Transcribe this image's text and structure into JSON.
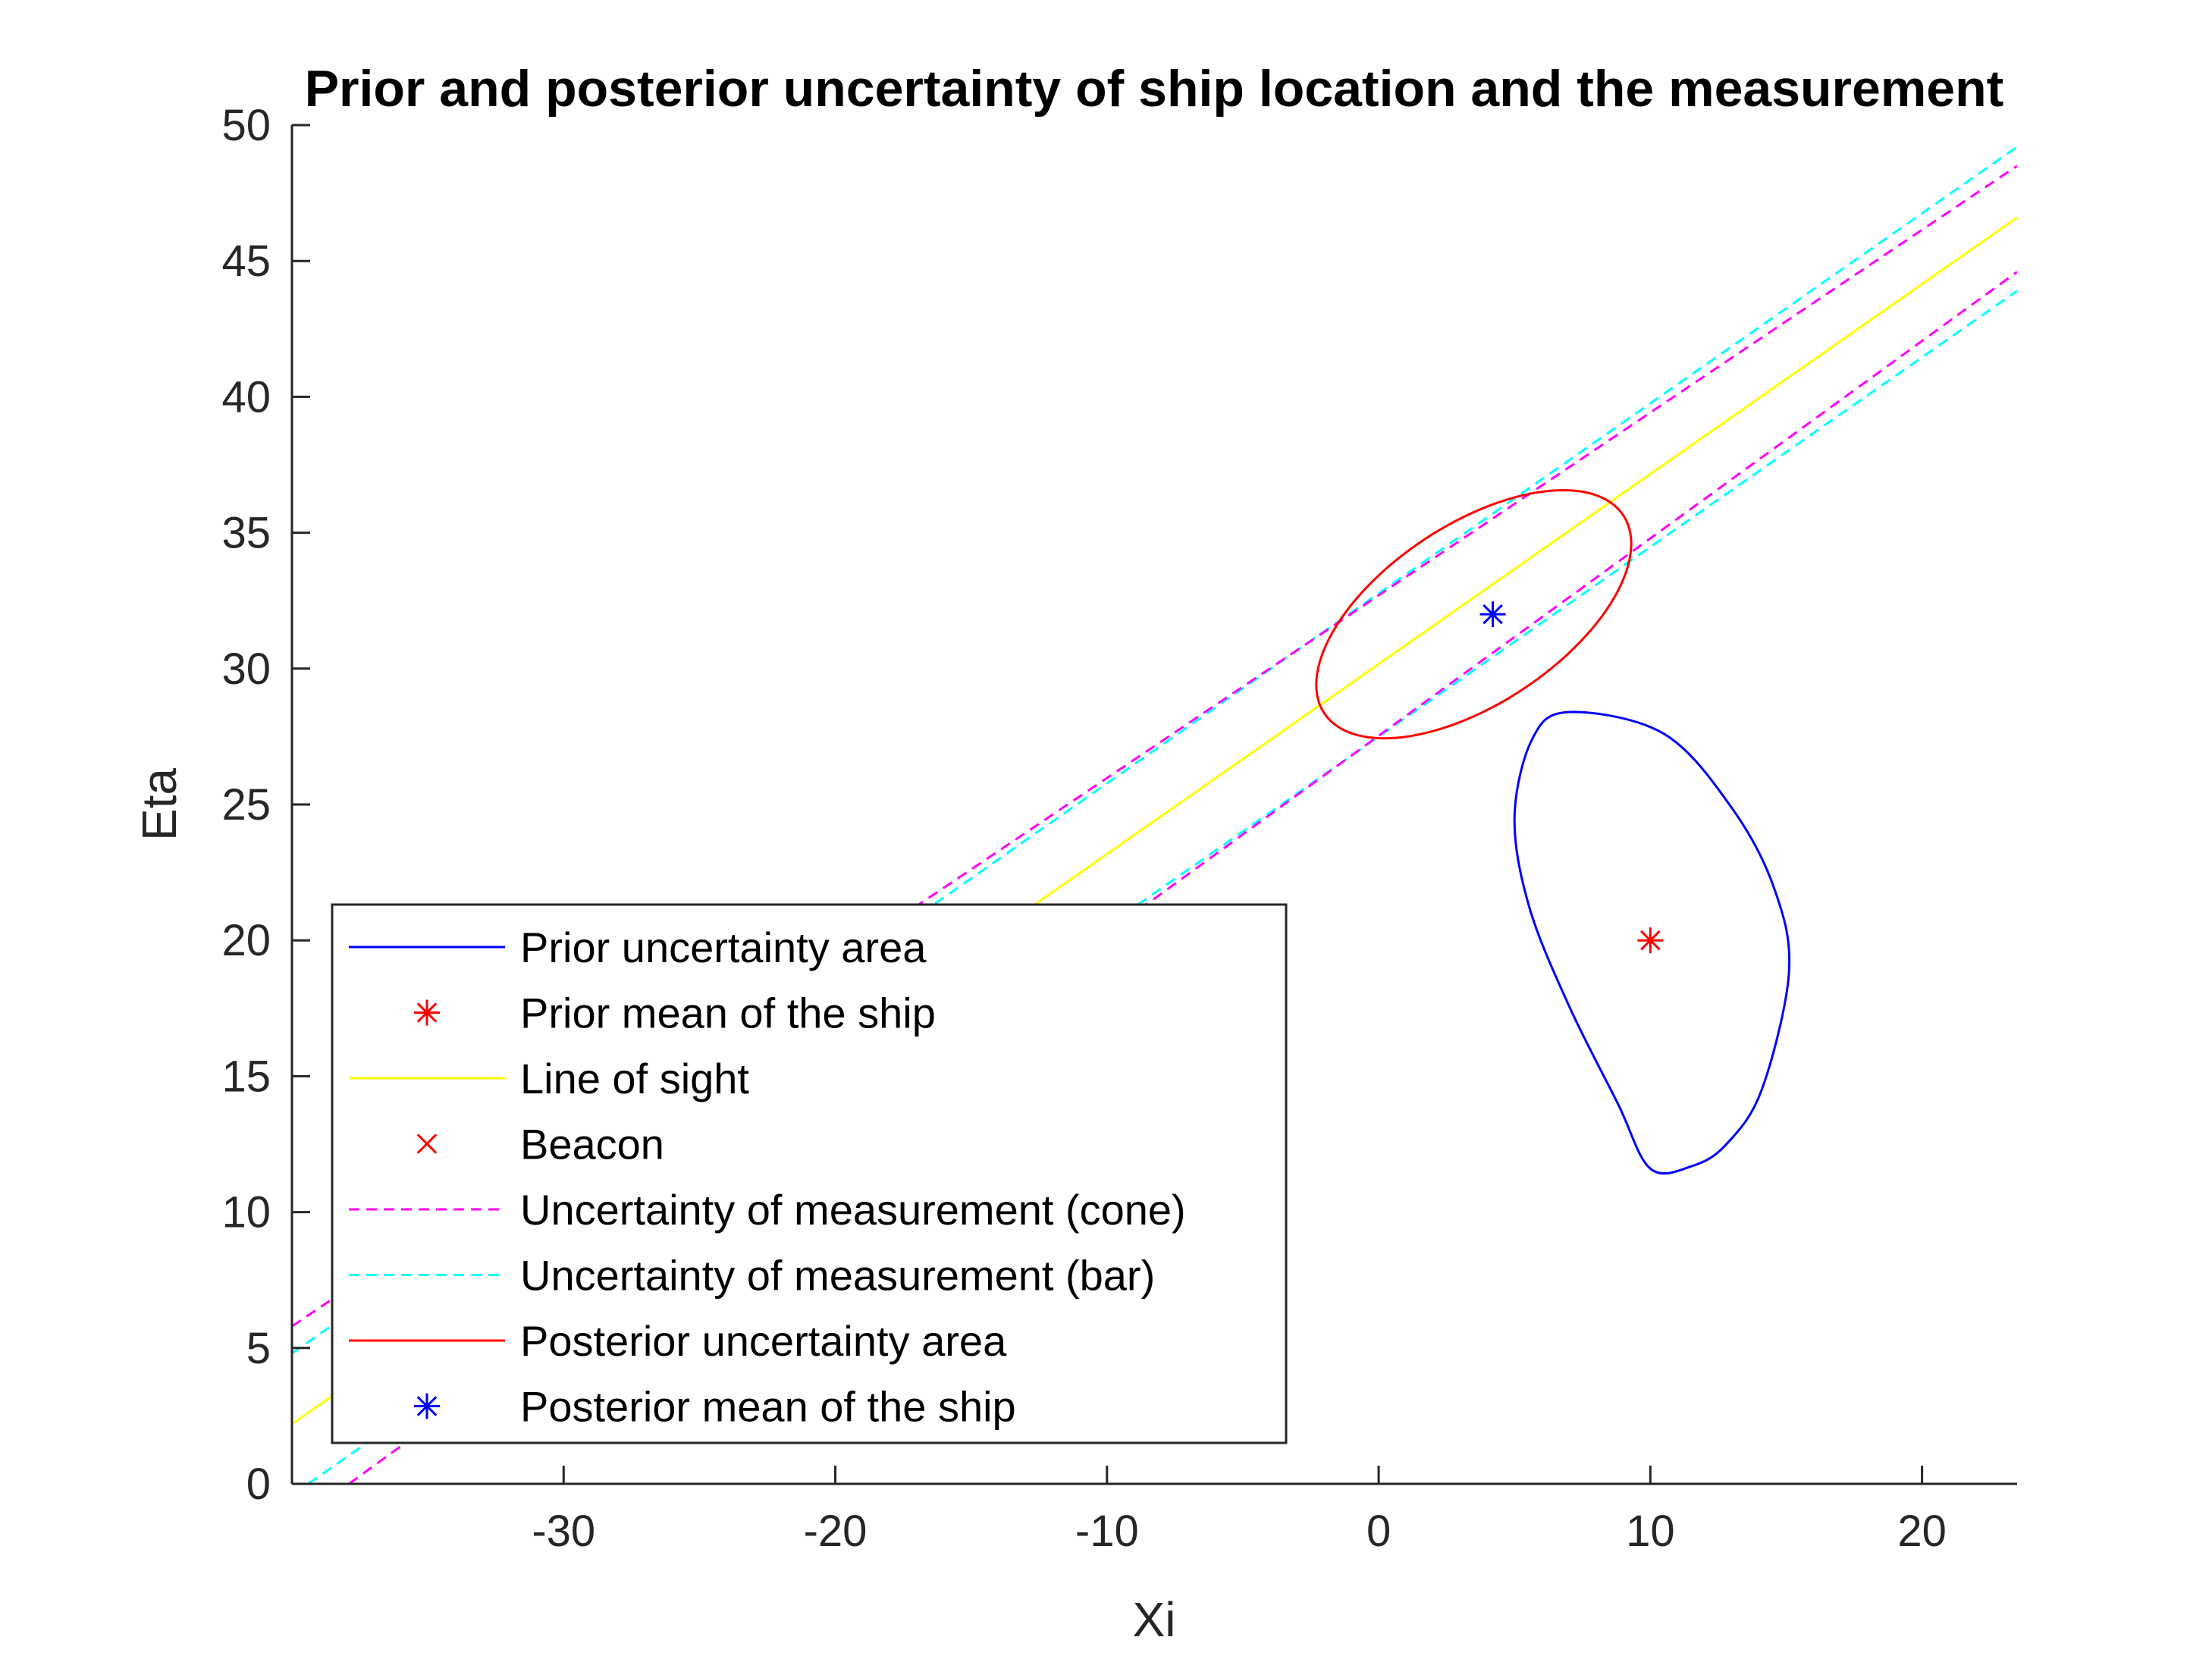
{
  "chart_data": {
    "type": "line",
    "title": "Prior and posterior uncertainty of ship location and the measurement",
    "xlabel": "Xi",
    "ylabel": "Eta",
    "xlim": [
      -40,
      23.5
    ],
    "ylim": [
      0,
      50
    ],
    "xticks": [
      -30,
      -20,
      -10,
      0,
      10,
      20
    ],
    "yticks": [
      0,
      5,
      10,
      15,
      20,
      25,
      30,
      35,
      40,
      45,
      50
    ],
    "legend_position": "bottom-left",
    "grid": false,
    "colors": {
      "prior_ellipse": "#0000ff",
      "prior_mean": "#ff0000",
      "line_of_sight": "#ffff00",
      "beacon": "#ff0000",
      "cone": "#ff00ff",
      "bar": "#00ffff",
      "posterior_ellipse": "#ff0000",
      "posterior_mean": "#0000ff"
    },
    "series": [
      {
        "name": "Prior uncertainty area",
        "kind": "ellipse",
        "color": "#0000ff",
        "style": "solid",
        "x": [
          10.0,
          11.55,
          12.8,
          14.1,
          15.1,
          14.6,
          13.05,
          10.5,
          7.0,
          5.65,
          5.0,
          5.55,
          7.0,
          8.8,
          10.0
        ],
        "y": [
          11.6,
          11.7,
          12.5,
          14.5,
          18.8,
          21.8,
          24.8,
          27.6,
          28.4,
          27.4,
          24.5,
          21.2,
          17.6,
          14.0,
          11.6
        ]
      },
      {
        "name": "Prior mean of the ship",
        "kind": "marker",
        "marker": "asterisk",
        "color": "#ff0000",
        "x": [
          10.0
        ],
        "y": [
          20.0
        ]
      },
      {
        "name": "Line of sight",
        "kind": "line",
        "color": "#ffff00",
        "style": "solid",
        "x": [
          -40.0,
          23.5
        ],
        "y": [
          2.2,
          46.6
        ]
      },
      {
        "name": "Beacon",
        "kind": "marker",
        "marker": "cross",
        "color": "#ff0000",
        "x": [],
        "y": []
      },
      {
        "name": "Uncertainty of measurement (cone)",
        "kind": "line-pair",
        "color": "#ff00ff",
        "style": "dashed",
        "lines": [
          {
            "x": [
              -40.0,
              23.5
            ],
            "y": [
              5.8,
              48.5
            ]
          },
          {
            "x": [
              -37.9,
              23.5
            ],
            "y": [
              0.0,
              44.6
            ]
          }
        ]
      },
      {
        "name": "Uncertainty of measurement (bar)",
        "kind": "line-pair",
        "color": "#00ffff",
        "style": "dashed",
        "lines": [
          {
            "x": [
              -40.0,
              23.5
            ],
            "y": [
              4.8,
              49.2
            ]
          },
          {
            "x": [
              -39.4,
              23.5
            ],
            "y": [
              0.0,
              43.9
            ]
          }
        ]
      },
      {
        "name": "Posterior uncertainty area",
        "kind": "ellipse",
        "color": "#ff0000",
        "style": "solid",
        "cx": 3.5,
        "cy": 32.0,
        "rx": 6.6,
        "ry": 3.3,
        "angle_deg": 33.5
      },
      {
        "name": "Posterior mean of the ship",
        "kind": "marker",
        "marker": "asterisk",
        "color": "#0000ff",
        "x": [
          4.2
        ],
        "y": [
          32.0
        ]
      }
    ]
  }
}
